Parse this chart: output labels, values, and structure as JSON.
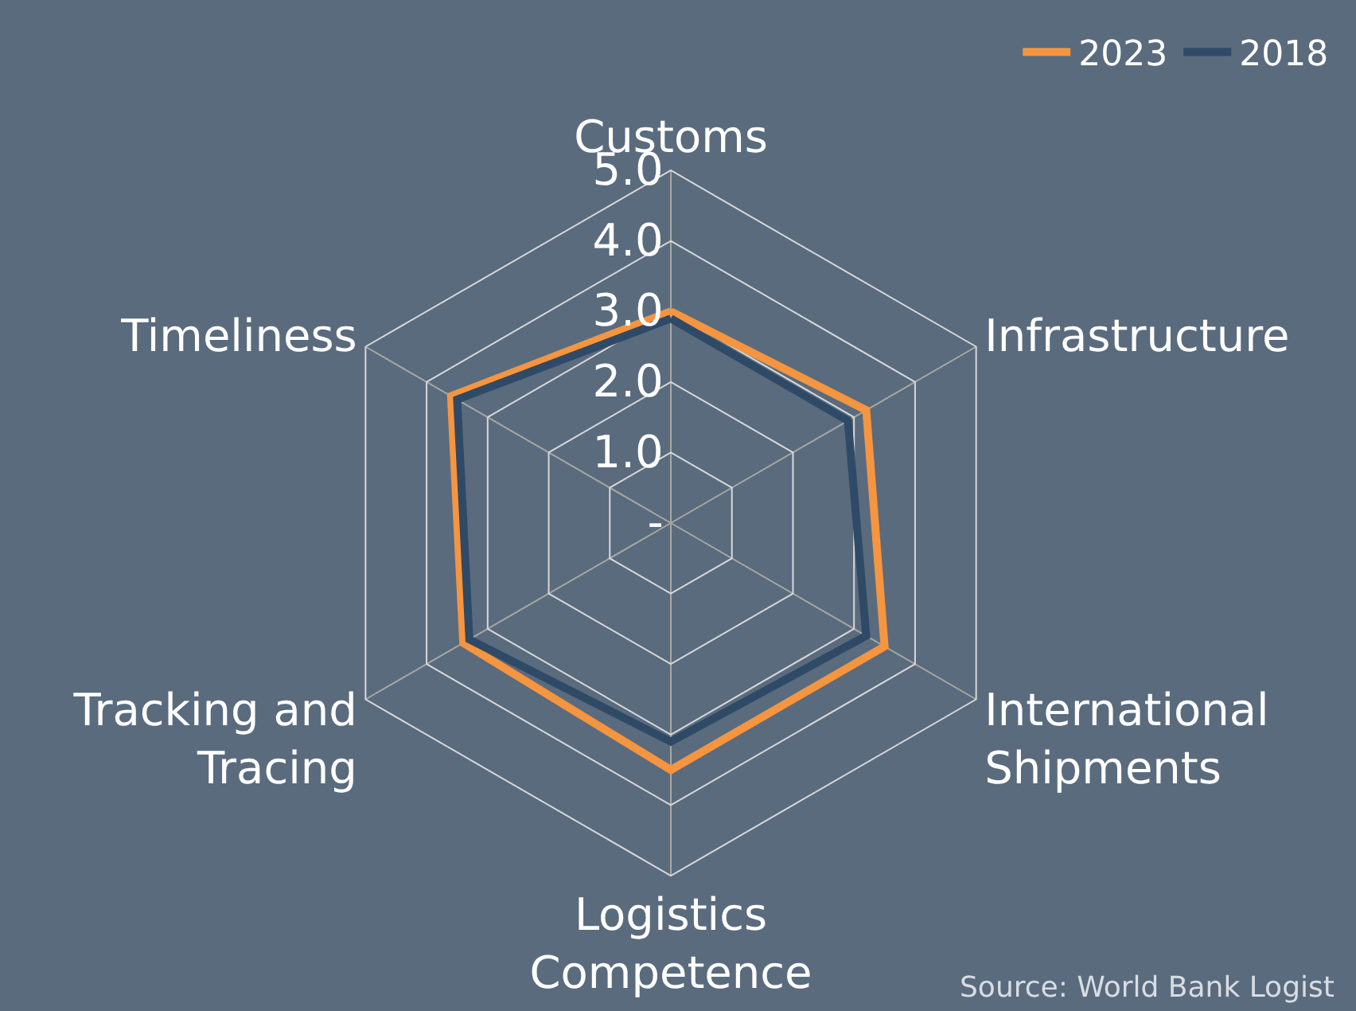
{
  "chart_data": {
    "type": "radar",
    "categories": [
      "Customs",
      "Infrastructure",
      "International\nShipments",
      "Logistics\nCompetence",
      "Tracking and\nTracing",
      "Timeliness"
    ],
    "series": [
      {
        "name": "2023",
        "color": "#f5953f",
        "values": [
          3.0,
          3.2,
          3.5,
          3.5,
          3.4,
          3.6
        ]
      },
      {
        "name": "2018",
        "color": "#2f4a66",
        "values": [
          2.9,
          2.9,
          3.2,
          3.1,
          3.3,
          3.5
        ]
      }
    ],
    "ylim": [
      0,
      5
    ],
    "yticks": [
      {
        "value": 0,
        "label": "-"
      },
      {
        "value": 1,
        "label": "1.0"
      },
      {
        "value": 2,
        "label": "2.0"
      },
      {
        "value": 3,
        "label": "3.0"
      },
      {
        "value": 4,
        "label": "4.0"
      },
      {
        "value": 5,
        "label": "5.0"
      }
    ],
    "grid": true,
    "legend": "top right",
    "marker": "none",
    "line_style": "solid",
    "annotations": [
      "Source: World Bank Logist"
    ]
  }
}
